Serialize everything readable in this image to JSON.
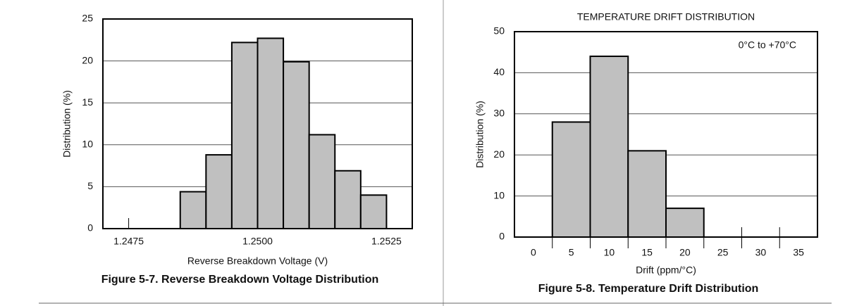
{
  "chart_data": [
    {
      "type": "histogram",
      "bins": [
        1.2485,
        1.249,
        1.2495,
        1.25,
        1.2505,
        1.251,
        1.2515,
        1.252,
        1.2525
      ],
      "values": [
        4.4,
        8.8,
        22.2,
        22.7,
        19.9,
        11.2,
        6.9,
        4.0
      ],
      "color": "#c0c0c0",
      "xlim": [
        1.247,
        1.253
      ],
      "xticks": [
        {
          "value": 1.2475,
          "label": "1.2475"
        },
        {
          "value": 1.25,
          "label": "1.2500"
        },
        {
          "value": 1.2525,
          "label": "1.2525"
        }
      ],
      "ylim": [
        0,
        25
      ],
      "yticks": [
        0,
        5,
        10,
        15,
        20,
        25
      ],
      "grid": true,
      "x_label": "Reverse Breakdown Voltage (V)",
      "y_label": "Distribution (%)",
      "caption": "Figure 5-7. Reverse Breakdown Voltage Distribution"
    },
    {
      "type": "bar",
      "title": "TEMPERATURE DRIFT DISTRIBUTION",
      "annotation": "0°C to +70°C",
      "categories": [
        "0",
        "5",
        "10",
        "15",
        "20",
        "25",
        "30",
        "35"
      ],
      "values": [
        0,
        28,
        44,
        21,
        7,
        0,
        0,
        0
      ],
      "color": "#c0c0c0",
      "ylim": [
        0,
        50
      ],
      "yticks": [
        0,
        10,
        20,
        30,
        40,
        50
      ],
      "grid": true,
      "x_label": "Drift (ppm/°C)",
      "y_label": "Distribution (%)",
      "caption": "Figure 5-8. Temperature Drift Distribution"
    }
  ]
}
